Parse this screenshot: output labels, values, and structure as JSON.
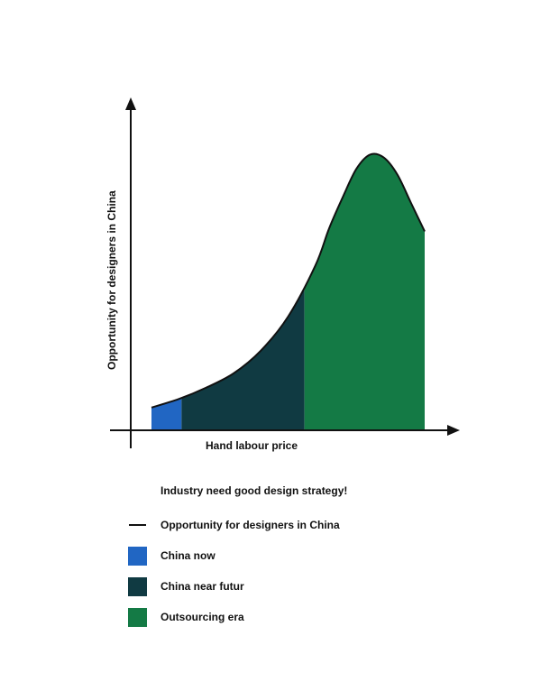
{
  "chart_data": {
    "type": "area",
    "xlabel": "Hand labour price",
    "ylabel": "Opportunity for designers in China",
    "curve": {
      "name": "Opportunity for designers in China",
      "x": [
        0,
        0.1,
        0.2,
        0.3,
        0.4,
        0.5,
        0.6,
        0.65,
        0.7,
        0.75,
        0.8,
        0.85,
        0.9,
        0.95,
        1.0
      ],
      "y": [
        0.08,
        0.11,
        0.15,
        0.2,
        0.28,
        0.4,
        0.58,
        0.71,
        0.82,
        0.92,
        0.97,
        0.96,
        0.9,
        0.8,
        0.7
      ]
    },
    "regions": [
      {
        "name": "China now",
        "x_range": [
          0,
          0.11
        ],
        "color": "#2166c3"
      },
      {
        "name": "China near futur",
        "x_range": [
          0.11,
          0.56
        ],
        "color": "#103a42"
      },
      {
        "name": "Outsourcing era",
        "x_range": [
          0.56,
          1.0
        ],
        "color": "#147a45"
      }
    ]
  },
  "caption": "Industry need good design strategy!",
  "legend": [
    {
      "label": "Opportunity for designers in China",
      "kind": "line",
      "color": "#111111"
    },
    {
      "label": "China now",
      "kind": "swatch",
      "color": "#2166c3"
    },
    {
      "label": "China near futur",
      "kind": "swatch",
      "color": "#103a42"
    },
    {
      "label": "Outsourcing era",
      "kind": "swatch",
      "color": "#147a45"
    }
  ]
}
